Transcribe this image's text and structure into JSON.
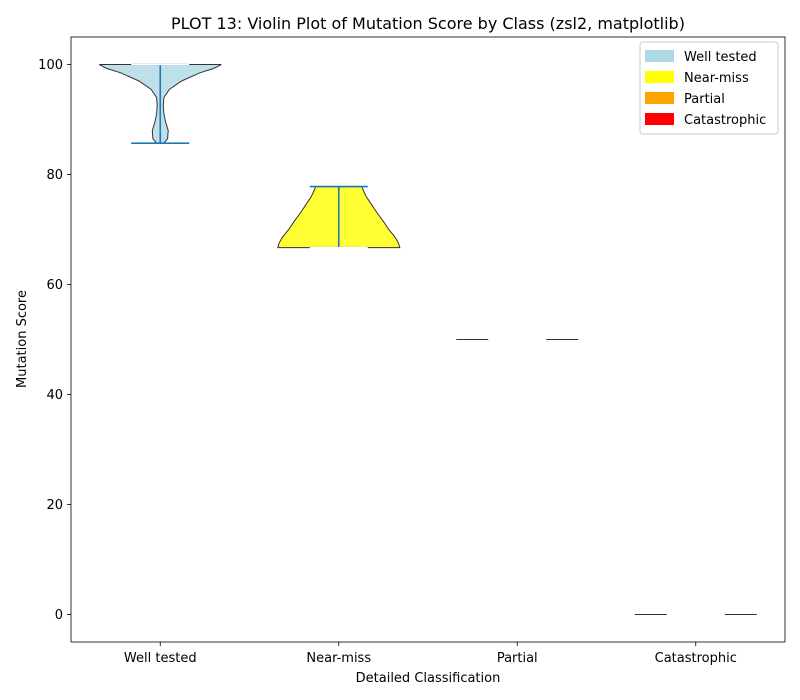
{
  "chart_data": {
    "type": "violin",
    "title": "PLOT 13: Violin Plot of Mutation Score by Class (zsl2, matplotlib)",
    "xlabel": "Detailed Classification",
    "ylabel": "Mutation Score",
    "ylim": [
      -5,
      105
    ],
    "yticks": [
      0,
      20,
      40,
      60,
      80,
      100
    ],
    "grid": false,
    "legend_position": "top-right",
    "categories": [
      "Well tested",
      "Near-miss",
      "Partial",
      "Catastrophic"
    ],
    "series": [
      {
        "name": "Well tested",
        "color": "#add8e6",
        "min": 85.7,
        "max": 100,
        "median": 100,
        "profile": [
          [
            85.7,
            0.06
          ],
          [
            86.5,
            0.12
          ],
          [
            88,
            0.13
          ],
          [
            89.5,
            0.09
          ],
          [
            91,
            0.06
          ],
          [
            92.5,
            0.05
          ],
          [
            94,
            0.06
          ],
          [
            95.5,
            0.15
          ],
          [
            97,
            0.35
          ],
          [
            98.5,
            0.65
          ],
          [
            99.3,
            0.88
          ],
          [
            100,
            1.0
          ]
        ]
      },
      {
        "name": "Near-miss",
        "color": "#ffff00",
        "min": 66.7,
        "max": 77.8,
        "median": 66.7,
        "profile": [
          [
            66.7,
            1.0
          ],
          [
            67.5,
            0.98
          ],
          [
            68.5,
            0.93
          ],
          [
            70,
            0.82
          ],
          [
            71.5,
            0.73
          ],
          [
            73,
            0.63
          ],
          [
            74.5,
            0.54
          ],
          [
            76,
            0.45
          ],
          [
            77.2,
            0.4
          ],
          [
            77.8,
            0.38
          ]
        ]
      },
      {
        "name": "Partial",
        "color": "#ffa500",
        "min": 50,
        "max": 50,
        "median": 50,
        "profile": []
      },
      {
        "name": "Catastrophic",
        "color": "#ff0000",
        "min": 0,
        "max": 0,
        "median": 0,
        "profile": []
      }
    ],
    "legend": [
      {
        "label": "Well tested",
        "color": "#add8e6"
      },
      {
        "label": "Near-miss",
        "color": "#ffff00"
      },
      {
        "label": "Partial",
        "color": "#ffa500"
      },
      {
        "label": "Catastrophic",
        "color": "#ff0000"
      }
    ]
  }
}
